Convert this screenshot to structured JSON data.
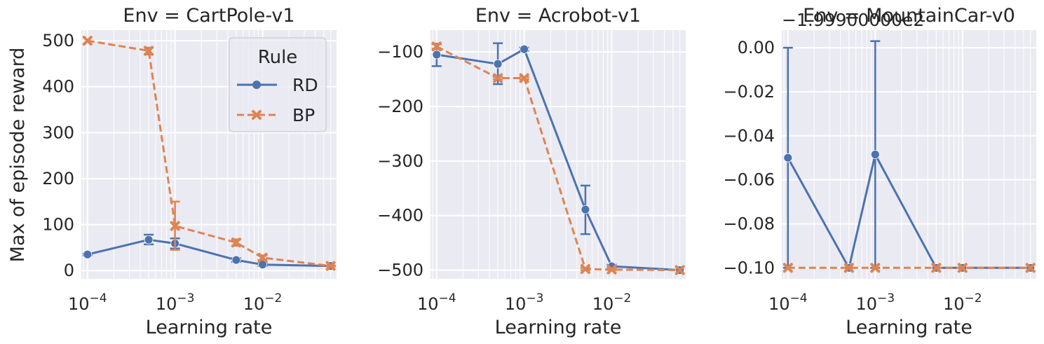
{
  "figure": {
    "ylabel": "Max of episode reward",
    "xlabel": "Learning rate",
    "legend": {
      "title": "Rule",
      "placement": "top-right of first panel",
      "entries": [
        "RD",
        "BP"
      ]
    }
  },
  "colors": {
    "RD": "#4c72b0",
    "BP": "#dd8452",
    "axes_bg": "#eaeaf2",
    "grid": "#ffffff",
    "text": "#262626"
  },
  "chart_data": [
    {
      "type": "line",
      "title": "Env = CartPole-v1",
      "xlabel": "Learning rate",
      "ylabel": "Max of episode reward",
      "x_scale": "log",
      "xlim": [
        8.5e-05,
        0.07
      ],
      "ylim": [
        -18,
        523
      ],
      "yticks": [
        0,
        100,
        200,
        300,
        400,
        500
      ],
      "ytick_labels": [
        "0",
        "100",
        "200",
        "300",
        "400",
        "500"
      ],
      "xticks": [
        0.0001,
        0.001,
        0.01
      ],
      "xtick_labels": [
        "10^-4",
        "10^-3",
        "10^-2"
      ],
      "offset_text": "",
      "grid": true,
      "legend": "top-right",
      "x": [
        0.0001,
        0.0005,
        0.001,
        0.005,
        0.01,
        0.06
      ],
      "series": [
        {
          "name": "RD",
          "y": [
            35,
            67,
            59,
            23,
            13,
            10
          ],
          "err_low": [
            33,
            57,
            48,
            19,
            10,
            9
          ],
          "err_high": [
            37,
            78,
            70,
            27,
            16,
            11
          ]
        },
        {
          "name": "BP",
          "y": [
            500,
            478,
            97,
            61,
            28,
            10
          ],
          "err_low": [
            500,
            470,
            45,
            54,
            23,
            9
          ],
          "err_high": [
            500,
            485,
            150,
            68,
            33,
            11
          ]
        }
      ]
    },
    {
      "type": "line",
      "title": "Env = Acrobot-v1",
      "xlabel": "Learning rate",
      "ylabel": "",
      "x_scale": "log",
      "xlim": [
        8.5e-05,
        0.07
      ],
      "ylim": [
        -516,
        -60
      ],
      "yticks": [
        -500,
        -400,
        -300,
        -200,
        -100
      ],
      "ytick_labels": [
        "−500",
        "−400",
        "−300",
        "−200",
        "−100"
      ],
      "xticks": [
        0.0001,
        0.001,
        0.01
      ],
      "xtick_labels": [
        "10^-4",
        "10^-3",
        "10^-2"
      ],
      "offset_text": "",
      "grid": true,
      "x": [
        0.0001,
        0.0005,
        0.001,
        0.005,
        0.01,
        0.06
      ],
      "series": [
        {
          "name": "RD",
          "y": [
            -105,
            -122,
            -95,
            -389,
            -493,
            -500
          ],
          "err_low": [
            -126,
            -159,
            -98,
            -434,
            -496,
            -500
          ],
          "err_high": [
            -85,
            -84,
            -92,
            -345,
            -490,
            -500
          ]
        },
        {
          "name": "BP",
          "y": [
            -90,
            -148,
            -148,
            -498,
            -499,
            -500
          ],
          "err_low": [
            -94,
            -150,
            -150,
            -500,
            -500,
            -500
          ],
          "err_high": [
            -86,
            -146,
            -146,
            -496,
            -498,
            -500
          ]
        }
      ]
    },
    {
      "type": "line",
      "title": "Env = MountainCar-v0",
      "xlabel": "Learning rate",
      "ylabel": "",
      "x_scale": "log",
      "xlim": [
        8.5e-05,
        0.07
      ],
      "ylim": [
        -0.105,
        0.008
      ],
      "yticks": [
        -0.1,
        -0.08,
        -0.06,
        -0.04,
        -0.02,
        0.0
      ],
      "ytick_labels": [
        "−0.10",
        "−0.08",
        "−0.06",
        "−0.04",
        "−0.02",
        "0.00"
      ],
      "xticks": [
        0.0001,
        0.001,
        0.01
      ],
      "xtick_labels": [
        "10^-4",
        "10^-3",
        "10^-2"
      ],
      "offset_text": "−1.99900000e2",
      "grid": true,
      "x": [
        0.0001,
        0.0005,
        0.001,
        0.005,
        0.01,
        0.06
      ],
      "series": [
        {
          "name": "RD",
          "y": [
            -0.05,
            -0.1,
            -0.0485,
            -0.1,
            -0.1,
            -0.1
          ],
          "err_low": [
            -0.1,
            -0.1,
            -0.1,
            -0.1,
            -0.1,
            -0.1
          ],
          "err_high": [
            0.0,
            -0.1,
            0.003,
            -0.1,
            -0.1,
            -0.1
          ]
        },
        {
          "name": "BP",
          "y": [
            -0.1,
            -0.1,
            -0.1,
            -0.1,
            -0.1,
            -0.1
          ],
          "err_low": [
            -0.1,
            -0.1,
            -0.1,
            -0.1,
            -0.1,
            -0.1
          ],
          "err_high": [
            -0.1,
            -0.1,
            -0.1,
            -0.1,
            -0.1,
            -0.1
          ]
        }
      ]
    }
  ]
}
